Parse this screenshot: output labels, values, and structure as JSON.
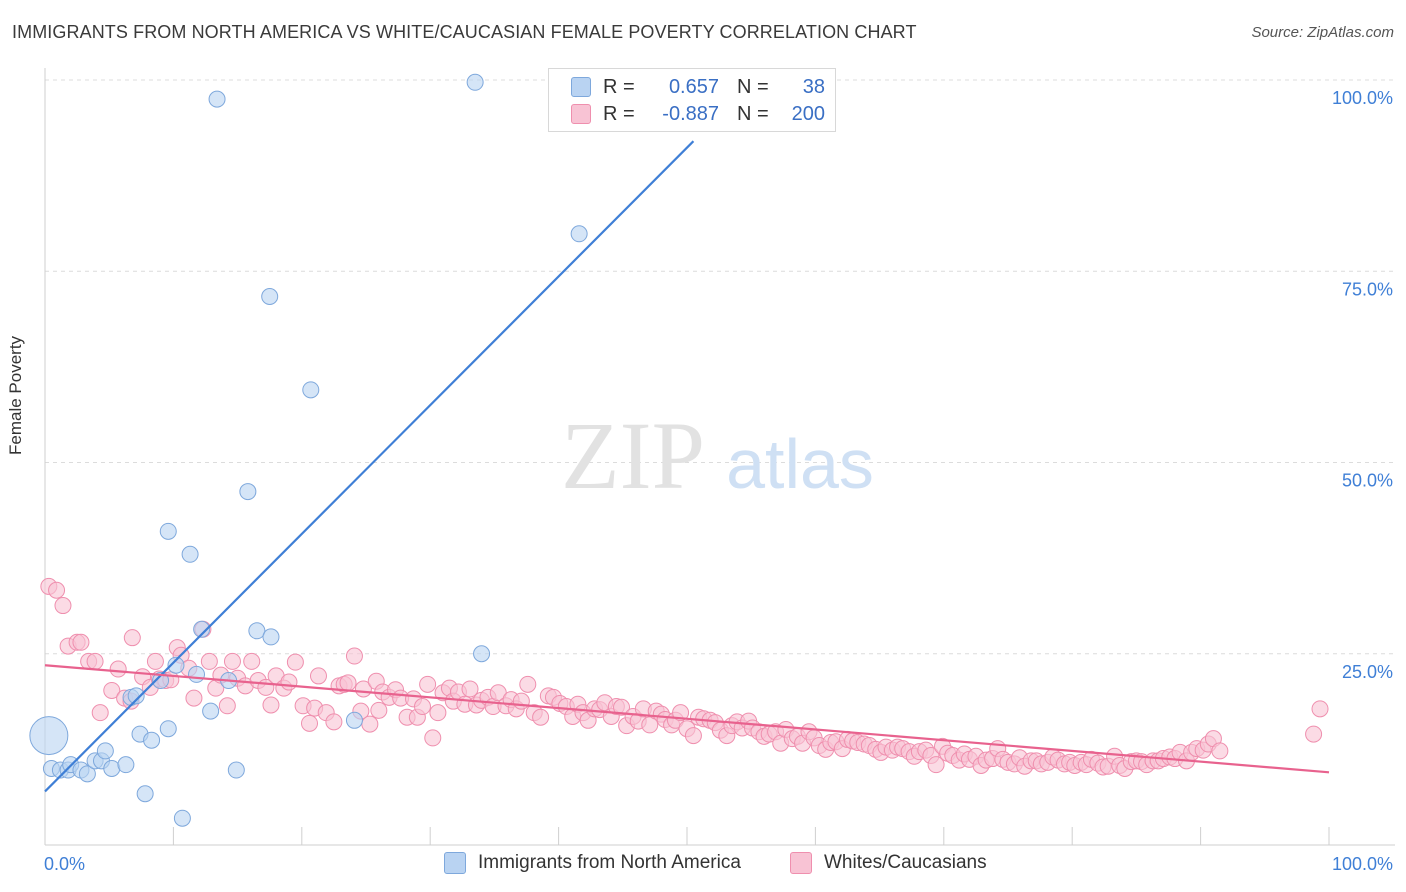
{
  "title": "IMMIGRANTS FROM NORTH AMERICA VS WHITE/CAUCASIAN FEMALE POVERTY CORRELATION CHART",
  "source": "Source: ZipAtlas.com",
  "watermark": {
    "zip": "ZIP",
    "atlas": "atlas"
  },
  "legend": {
    "r_label": "R =",
    "n_label": "N =",
    "series1": {
      "r": "0.657",
      "n": "38"
    },
    "series2": {
      "r": "-0.887",
      "n": "200"
    }
  },
  "colors": {
    "blue_fill": "#b9d3f2",
    "blue_stroke": "#7ea8dc",
    "blue_line": "#3f7fd6",
    "pink_fill": "#f8c3d4",
    "pink_stroke": "#ef8fae",
    "pink_line": "#e8628e",
    "tick_text": "#3f7fd6"
  },
  "chart_data": {
    "type": "scatter",
    "xlabel": "",
    "ylabel": "Female Poverty",
    "xlim": [
      0,
      100
    ],
    "ylim": [
      0,
      100
    ],
    "x_tick_labels": [
      "0.0%",
      "100.0%"
    ],
    "y_tick_labels": [
      "25.0%",
      "50.0%",
      "75.0%",
      "100.0%"
    ],
    "y_tick_values": [
      25,
      50,
      75,
      100
    ],
    "grid": "horizontal dashed",
    "legend_position": "top-center",
    "series": [
      {
        "name": "Immigrants from North America",
        "color": "#b9d3f2",
        "points": [
          [
            0.3,
            14.3
          ],
          [
            0.5,
            10.0
          ],
          [
            1.2,
            9.8
          ],
          [
            1.8,
            9.8
          ],
          [
            2.0,
            10.5
          ],
          [
            2.8,
            9.8
          ],
          [
            3.3,
            9.3
          ],
          [
            3.9,
            11.0
          ],
          [
            4.4,
            11.0
          ],
          [
            4.7,
            12.3
          ],
          [
            5.2,
            10.0
          ],
          [
            6.3,
            10.5
          ],
          [
            6.7,
            19.3
          ],
          [
            7.1,
            19.5
          ],
          [
            7.4,
            14.5
          ],
          [
            7.8,
            6.7
          ],
          [
            8.3,
            13.7
          ],
          [
            9.0,
            21.5
          ],
          [
            9.6,
            15.2
          ],
          [
            9.6,
            41.0
          ],
          [
            10.2,
            23.5
          ],
          [
            10.7,
            3.5
          ],
          [
            11.3,
            38.0
          ],
          [
            11.8,
            22.3
          ],
          [
            12.2,
            28.2
          ],
          [
            12.9,
            17.5
          ],
          [
            13.4,
            97.5
          ],
          [
            14.3,
            21.5
          ],
          [
            14.9,
            9.8
          ],
          [
            15.8,
            46.2
          ],
          [
            16.5,
            28.0
          ],
          [
            17.5,
            71.7
          ],
          [
            17.6,
            27.2
          ],
          [
            20.7,
            59.5
          ],
          [
            24.1,
            16.3
          ],
          [
            33.5,
            99.7
          ],
          [
            34.0,
            25.0
          ],
          [
            41.6,
            79.9
          ]
        ]
      },
      {
        "name": "Whites/Caucasians",
        "color": "#f8c3d4",
        "points": [
          [
            0.3,
            33.8
          ],
          [
            0.9,
            33.3
          ],
          [
            1.4,
            31.3
          ],
          [
            1.8,
            26.0
          ],
          [
            2.5,
            26.5
          ],
          [
            2.8,
            26.5
          ],
          [
            3.4,
            24.0
          ],
          [
            3.9,
            24.0
          ],
          [
            4.3,
            17.3
          ],
          [
            5.2,
            20.2
          ],
          [
            5.7,
            23.0
          ],
          [
            6.2,
            19.2
          ],
          [
            6.7,
            18.8
          ],
          [
            6.8,
            27.1
          ],
          [
            7.6,
            22.0
          ],
          [
            8.2,
            20.6
          ],
          [
            8.6,
            24.0
          ],
          [
            8.9,
            21.7
          ],
          [
            9.4,
            21.5
          ],
          [
            9.8,
            21.6
          ],
          [
            10.3,
            25.8
          ],
          [
            10.6,
            24.8
          ],
          [
            11.2,
            23.1
          ],
          [
            11.6,
            19.2
          ],
          [
            12.3,
            28.2
          ],
          [
            12.8,
            24.0
          ],
          [
            13.3,
            20.5
          ],
          [
            13.7,
            22.2
          ],
          [
            14.2,
            18.2
          ],
          [
            14.6,
            24.0
          ],
          [
            15.0,
            21.8
          ],
          [
            15.6,
            20.8
          ],
          [
            16.1,
            24.0
          ],
          [
            16.6,
            21.5
          ],
          [
            17.2,
            20.6
          ],
          [
            17.6,
            18.3
          ],
          [
            18.0,
            22.1
          ],
          [
            18.6,
            20.5
          ],
          [
            19.0,
            21.3
          ],
          [
            19.5,
            23.9
          ],
          [
            20.1,
            18.2
          ],
          [
            20.6,
            15.9
          ],
          [
            21.0,
            17.9
          ],
          [
            21.3,
            22.1
          ],
          [
            21.9,
            17.3
          ],
          [
            22.5,
            16.1
          ],
          [
            22.9,
            20.8
          ],
          [
            23.3,
            21.0
          ],
          [
            23.6,
            21.2
          ],
          [
            24.1,
            24.7
          ],
          [
            24.6,
            17.5
          ],
          [
            24.8,
            20.4
          ],
          [
            25.3,
            15.8
          ],
          [
            25.8,
            21.4
          ],
          [
            26.0,
            17.6
          ],
          [
            26.3,
            20.0
          ],
          [
            26.8,
            19.3
          ],
          [
            27.3,
            20.3
          ],
          [
            27.7,
            19.2
          ],
          [
            28.2,
            16.7
          ],
          [
            28.7,
            19.1
          ],
          [
            29.0,
            16.7
          ],
          [
            29.4,
            18.1
          ],
          [
            29.8,
            21.0
          ],
          [
            30.2,
            14.0
          ],
          [
            30.6,
            17.3
          ],
          [
            31.0,
            19.9
          ],
          [
            31.5,
            20.5
          ],
          [
            31.8,
            18.8
          ],
          [
            32.2,
            20.0
          ],
          [
            32.7,
            18.4
          ],
          [
            33.1,
            20.4
          ],
          [
            33.6,
            18.3
          ],
          [
            34.0,
            18.9
          ],
          [
            34.5,
            19.3
          ],
          [
            34.9,
            18.1
          ],
          [
            35.3,
            19.9
          ],
          [
            35.9,
            18.2
          ],
          [
            36.3,
            19.0
          ],
          [
            36.7,
            17.8
          ],
          [
            37.1,
            18.8
          ],
          [
            37.6,
            21.0
          ],
          [
            38.1,
            17.3
          ],
          [
            38.6,
            16.7
          ],
          [
            39.2,
            19.5
          ],
          [
            39.6,
            19.3
          ],
          [
            40.1,
            18.5
          ],
          [
            40.6,
            18.1
          ],
          [
            41.1,
            16.8
          ],
          [
            41.5,
            18.4
          ],
          [
            41.9,
            17.3
          ],
          [
            42.3,
            16.3
          ],
          [
            42.8,
            17.8
          ],
          [
            43.2,
            17.7
          ],
          [
            43.6,
            18.6
          ],
          [
            44.1,
            16.8
          ],
          [
            44.5,
            18.1
          ],
          [
            44.9,
            18.0
          ],
          [
            45.3,
            15.6
          ],
          [
            45.8,
            16.8
          ],
          [
            46.2,
            16.2
          ],
          [
            46.6,
            17.8
          ],
          [
            47.1,
            15.7
          ],
          [
            47.6,
            17.5
          ],
          [
            48.0,
            17.1
          ],
          [
            48.3,
            16.4
          ],
          [
            48.8,
            15.7
          ],
          [
            49.1,
            16.3
          ],
          [
            49.5,
            17.3
          ],
          [
            50.0,
            15.2
          ],
          [
            50.5,
            14.3
          ],
          [
            50.9,
            16.7
          ],
          [
            51.3,
            16.5
          ],
          [
            51.8,
            16.3
          ],
          [
            52.2,
            16.0
          ],
          [
            52.6,
            15.0
          ],
          [
            53.1,
            14.3
          ],
          [
            53.5,
            15.6
          ],
          [
            53.9,
            16.1
          ],
          [
            54.3,
            15.3
          ],
          [
            54.8,
            16.2
          ],
          [
            55.1,
            15.3
          ],
          [
            55.6,
            14.8
          ],
          [
            56.0,
            14.2
          ],
          [
            56.4,
            14.5
          ],
          [
            56.9,
            14.8
          ],
          [
            57.3,
            13.3
          ],
          [
            57.7,
            15.1
          ],
          [
            58.2,
            13.9
          ],
          [
            58.6,
            14.2
          ],
          [
            59.0,
            13.3
          ],
          [
            59.5,
            14.8
          ],
          [
            59.9,
            14.0
          ],
          [
            60.3,
            13.0
          ],
          [
            60.8,
            12.5
          ],
          [
            61.2,
            13.4
          ],
          [
            61.6,
            13.5
          ],
          [
            62.1,
            12.6
          ],
          [
            62.5,
            13.8
          ],
          [
            62.9,
            13.6
          ],
          [
            63.3,
            13.4
          ],
          [
            63.8,
            13.2
          ],
          [
            64.2,
            13.0
          ],
          [
            64.7,
            12.5
          ],
          [
            65.1,
            12.1
          ],
          [
            65.5,
            12.8
          ],
          [
            66.0,
            12.4
          ],
          [
            66.4,
            12.8
          ],
          [
            66.8,
            12.6
          ],
          [
            67.3,
            12.2
          ],
          [
            67.7,
            11.6
          ],
          [
            68.1,
            12.2
          ],
          [
            68.6,
            12.4
          ],
          [
            69.0,
            11.7
          ],
          [
            69.4,
            10.5
          ],
          [
            69.9,
            12.9
          ],
          [
            70.3,
            12.0
          ],
          [
            70.7,
            11.7
          ],
          [
            71.2,
            11.1
          ],
          [
            71.6,
            11.9
          ],
          [
            72.0,
            11.2
          ],
          [
            72.5,
            11.6
          ],
          [
            72.9,
            10.4
          ],
          [
            73.3,
            11.1
          ],
          [
            73.8,
            11.3
          ],
          [
            74.2,
            12.6
          ],
          [
            74.6,
            11.2
          ],
          [
            75.0,
            10.8
          ],
          [
            75.5,
            10.6
          ],
          [
            75.9,
            11.4
          ],
          [
            76.3,
            10.3
          ],
          [
            76.8,
            11.0
          ],
          [
            77.2,
            11.0
          ],
          [
            77.6,
            10.6
          ],
          [
            78.1,
            10.8
          ],
          [
            78.5,
            11.5
          ],
          [
            78.9,
            11.1
          ],
          [
            79.4,
            10.6
          ],
          [
            79.8,
            10.8
          ],
          [
            80.2,
            10.4
          ],
          [
            80.7,
            10.8
          ],
          [
            81.1,
            10.5
          ],
          [
            81.5,
            11.2
          ],
          [
            82.0,
            10.7
          ],
          [
            82.4,
            10.2
          ],
          [
            82.8,
            10.3
          ],
          [
            83.3,
            11.6
          ],
          [
            83.7,
            10.4
          ],
          [
            84.1,
            10.0
          ],
          [
            84.6,
            10.9
          ],
          [
            85.0,
            11.0
          ],
          [
            85.4,
            10.9
          ],
          [
            85.8,
            10.5
          ],
          [
            86.3,
            11.0
          ],
          [
            86.7,
            11.0
          ],
          [
            87.1,
            11.3
          ],
          [
            87.6,
            11.5
          ],
          [
            88.0,
            11.3
          ],
          [
            88.4,
            12.1
          ],
          [
            88.9,
            11.0
          ],
          [
            89.3,
            12.1
          ],
          [
            89.7,
            12.6
          ],
          [
            90.2,
            12.4
          ],
          [
            90.6,
            13.2
          ],
          [
            91.0,
            13.9
          ],
          [
            91.5,
            12.3
          ],
          [
            98.8,
            14.5
          ],
          [
            99.3,
            17.8
          ]
        ]
      }
    ],
    "trend_lines": [
      {
        "series": "Immigrants from North America",
        "x": [
          0,
          50.5
        ],
        "y": [
          7.0,
          92.0
        ]
      },
      {
        "series": "Whites/Caucasians",
        "x": [
          0,
          100
        ],
        "y": [
          23.5,
          9.5
        ]
      }
    ]
  }
}
